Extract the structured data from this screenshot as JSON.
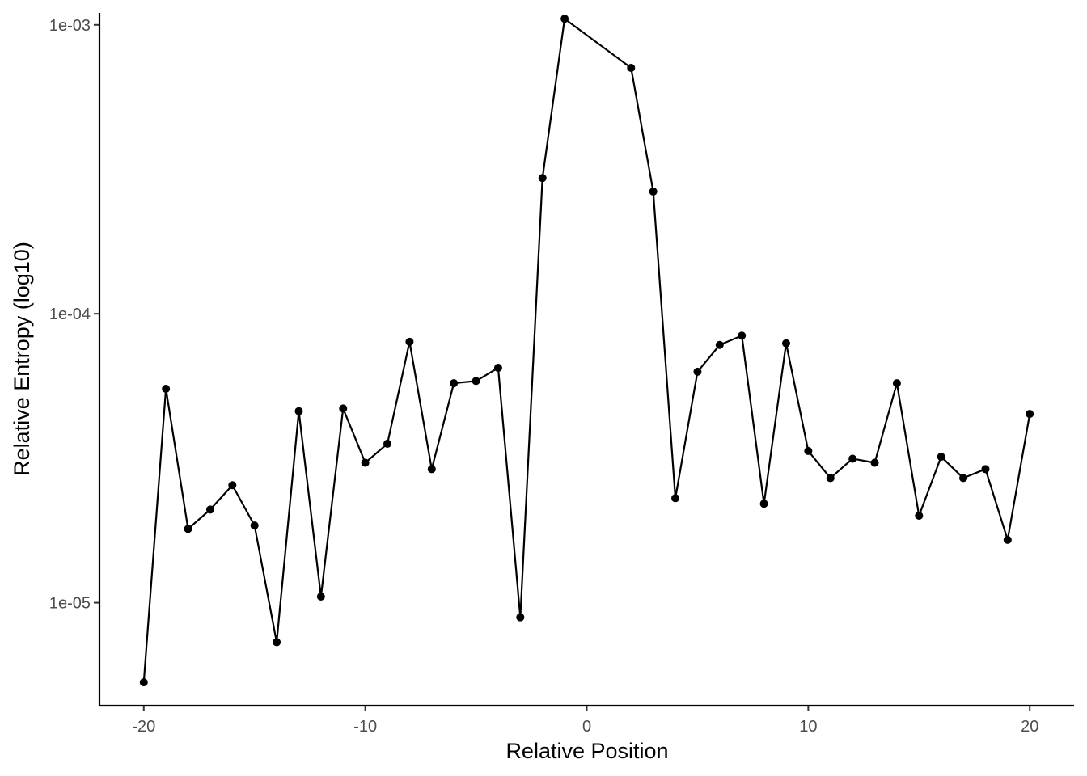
{
  "chart_data": {
    "type": "line",
    "xlabel": "Relative Position",
    "ylabel": "Relative Entropy (log10)",
    "y_scale": "log10",
    "grid": false,
    "legend": "none",
    "xlim": [
      -22,
      22
    ],
    "ylim": [
      4.4e-06,
      0.0011
    ],
    "x_ticks": [
      -20,
      -10,
      0,
      10,
      20
    ],
    "x_tick_labels": [
      "-20",
      "-10",
      "0",
      "10",
      "20"
    ],
    "y_ticks": [
      1e-05,
      0.0001,
      0.001
    ],
    "y_tick_labels": [
      "1e-05",
      "1e-04",
      "1e-03"
    ],
    "series": [
      {
        "color": "#000000",
        "x": [
          -20,
          -19,
          -18,
          -17,
          -16,
          -15,
          -14,
          -13,
          -12,
          -11,
          -10,
          -9,
          -8,
          -7,
          -6,
          -5,
          -4,
          -3,
          -2,
          -1,
          2,
          3,
          4,
          5,
          6,
          7,
          8,
          9,
          10,
          11,
          12,
          13,
          14,
          15,
          16,
          17,
          18,
          19,
          20
        ],
        "y": [
          5.3e-06,
          5.5e-05,
          1.8e-05,
          2.1e-05,
          2.55e-05,
          1.85e-05,
          7.3e-06,
          4.6e-05,
          1.05e-05,
          4.7e-05,
          3.05e-05,
          3.55e-05,
          8e-05,
          2.9e-05,
          5.75e-05,
          5.85e-05,
          6.5e-05,
          8.9e-06,
          0.000295,
          0.00105,
          0.00071,
          0.000265,
          2.3e-05,
          6.3e-05,
          7.8e-05,
          8.4e-05,
          2.2e-05,
          7.9e-05,
          3.35e-05,
          2.7e-05,
          3.15e-05,
          3.05e-05,
          5.75e-05,
          2e-05,
          3.2e-05,
          2.7e-05,
          2.9e-05,
          1.65e-05,
          4.5e-05
        ]
      }
    ]
  }
}
